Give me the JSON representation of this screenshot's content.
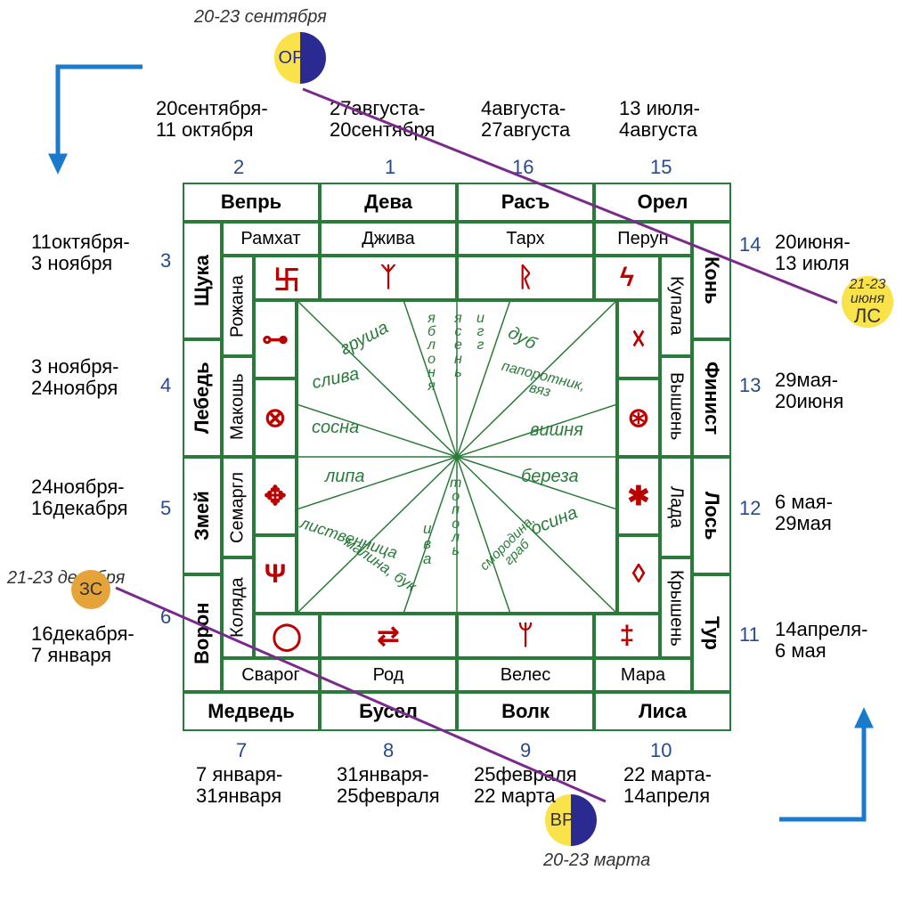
{
  "colors": {
    "grid": "#2a7a3a",
    "number": "#284a8a",
    "text": "#000000",
    "tree": "#2a7a3a",
    "symbol": "#b00000",
    "arrow": "#1a7acb",
    "purple": "#7a2a8a",
    "circ_yellow": "#fae24a",
    "circ_blue": "#2a2a90",
    "circ_orange": "#e6a33a"
  },
  "solstices": {
    "or": {
      "label": "ОР",
      "date": "20-23 сентября"
    },
    "ls": {
      "label": "ЛС",
      "date": "21-23 июня"
    },
    "zs": {
      "label": "ЗС",
      "date": "21-23 декабря"
    },
    "vr": {
      "label": "ВР",
      "date": "20-23 марта"
    }
  },
  "outer_top": [
    {
      "n": "2",
      "date": "20сентября-\n11 октября",
      "name": "Вепрь"
    },
    {
      "n": "1",
      "date": "27августа-\n20сентября",
      "name": "Дева"
    },
    {
      "n": "16",
      "date": "4августа-\n27августа",
      "name": "Расъ"
    },
    {
      "n": "15",
      "date": "13 июля-\n4августа",
      "name": "Орел"
    }
  ],
  "outer_left": [
    {
      "n": "3",
      "date": "11октября-\n3 ноября",
      "name": "Щука"
    },
    {
      "n": "4",
      "date": "3 ноября-\n24ноября",
      "name": "Лебедь"
    },
    {
      "n": "5",
      "date": "24ноября-\n16декабря",
      "name": "Змей"
    },
    {
      "n": "6",
      "date": "16декабря-\n7 января",
      "name": "Ворон"
    }
  ],
  "outer_bottom": [
    {
      "n": "7",
      "date": "7 января-\n31января",
      "name": "Медведь"
    },
    {
      "n": "8",
      "date": "31января-\n25февраля",
      "name": "Бусел"
    },
    {
      "n": "9",
      "date": "25февраля\n22 марта",
      "name": "Волк"
    },
    {
      "n": "10",
      "date": "22 марта-\n14апреля",
      "name": "Лиса"
    }
  ],
  "outer_right": [
    {
      "n": "14",
      "date": "20июня-\n13 июля",
      "name": "Конь"
    },
    {
      "n": "13",
      "date": "29мая-\n20июня",
      "name": "Финист"
    },
    {
      "n": "12",
      "date": "6 мая-\n29мая",
      "name": "Лось"
    },
    {
      "n": "11",
      "date": "14апреля-\n6 мая",
      "name": "Тур"
    }
  ],
  "deities_top": [
    "Рамхат",
    "Джива",
    "Тарх",
    "Перун"
  ],
  "deities_left": [
    "Рожана",
    "Макошь",
    "Семаргл",
    "Коляда"
  ],
  "deities_bottom": [
    "Сварог",
    "Род",
    "Велес",
    "Мара"
  ],
  "deities_right": [
    "Купала",
    "Вышень",
    "Лада",
    "Крышень"
  ],
  "symbols_top": [
    "卐",
    "ᛉ",
    "ᚱ",
    "ϟ"
  ],
  "symbols_left": [
    "⊶",
    "⊗",
    "✥",
    "Ψ"
  ],
  "symbols_bottom": [
    "◯",
    "⇄",
    "ᛘ",
    "‡"
  ],
  "symbols_right": [
    "☓",
    "⊛",
    "✱",
    "◊"
  ],
  "trees": {
    "grusha": "груша",
    "sliva": "слива",
    "sosna": "сосна",
    "lipa": "липа",
    "listvennitsa": "лиственница",
    "malina": "малина, бук",
    "iva": "и\nв\nа",
    "topol": "т\nо\nп\nо\nл\nь",
    "yablonya": "я\nб\nл\nо\nн\nя",
    "yasen": "я\nс\nе\nн\nь",
    "igg": "и\nг\nг",
    "dub": "дуб",
    "paporotnik": "папоротник,\nвяз",
    "vishnya": "вишня",
    "bereza": "береза",
    "osina": "осина",
    "smorodina": "смородина,\nграб"
  }
}
